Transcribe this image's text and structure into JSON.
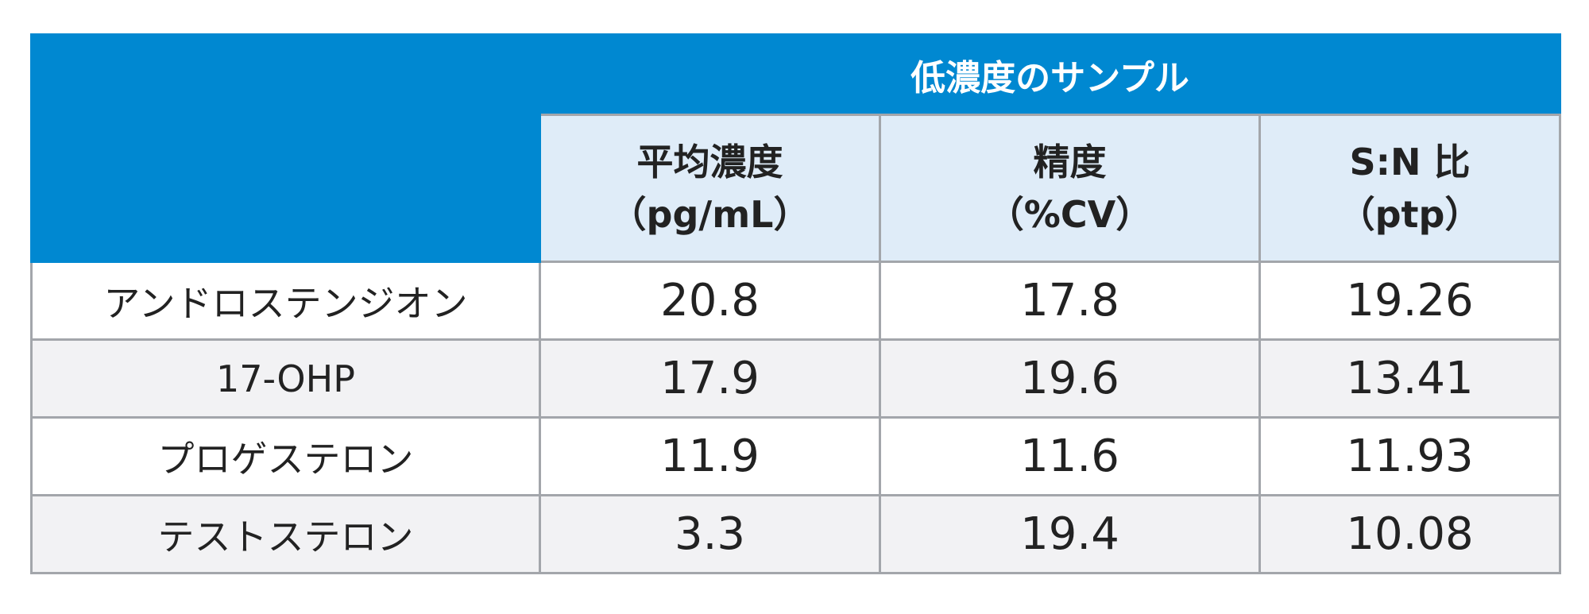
{
  "table": {
    "group_header": "低濃度のサンプル",
    "columns": [
      {
        "line1": "平均濃度",
        "line2": "（pg/mL）"
      },
      {
        "line1": "精度",
        "line2": "（%CV）"
      },
      {
        "line1": "S:N 比",
        "line2": "（ptp）"
      }
    ],
    "rows": [
      {
        "name": "アンドロステンジオン",
        "values": [
          "20.8",
          "17.8",
          "19.26"
        ]
      },
      {
        "name": "17-OHP",
        "values": [
          "17.9",
          "19.6",
          "13.41"
        ]
      },
      {
        "name": "プロゲステロン",
        "values": [
          "11.9",
          "11.6",
          "11.93"
        ]
      },
      {
        "name": "テストステロン",
        "values": [
          "3.3",
          "19.4",
          "10.08"
        ]
      }
    ]
  },
  "colors": {
    "header_blue": "#0088d1",
    "subheader_light_blue": "#dfecf8",
    "border_gray": "#a3a6ab",
    "alt_row_gray": "#f2f2f4"
  }
}
